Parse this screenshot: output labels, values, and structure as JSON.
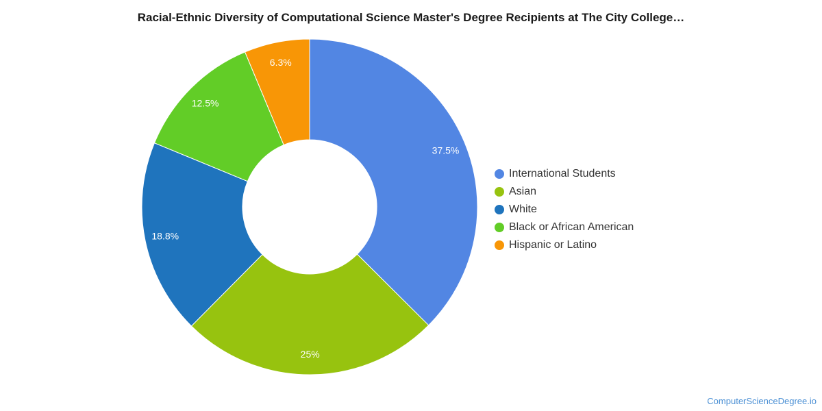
{
  "chart_data": {
    "type": "pie",
    "donut": true,
    "title": "Racial-Ethnic Diversity of Computational Science Master's Degree Recipients at The City College…",
    "categories": [
      "International Students",
      "Asian",
      "White",
      "Black or African American",
      "Hispanic or Latino"
    ],
    "values": [
      37.5,
      25,
      18.8,
      12.5,
      6.3
    ],
    "value_labels": [
      "37.5%",
      "25%",
      "18.8%",
      "12.5%",
      "6.3%"
    ],
    "colors": [
      "#5286e3",
      "#97c30f",
      "#1f74bd",
      "#62cd27",
      "#f89606"
    ],
    "legend_position": "right"
  },
  "source": "ComputerScienceDegree.io"
}
